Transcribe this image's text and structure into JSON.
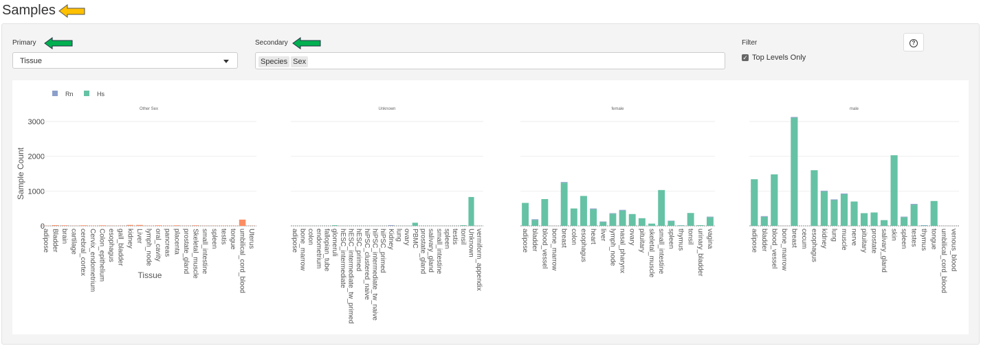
{
  "header": {
    "title": "Samples"
  },
  "controls": {
    "primary_label": "Primary",
    "primary_value": "Tissue",
    "secondary_label": "Secondary",
    "secondary_tags": [
      "Species",
      "Sex"
    ],
    "filter_label": "Filter",
    "filter_option": "Top Levels Only",
    "filter_checked": true,
    "help_icon": "question-circle-icon"
  },
  "annotations": {
    "yellow_arrow_color": "#ffc000",
    "green_arrow_color": "#00b050"
  },
  "chart_data": {
    "type": "bar",
    "stacked": true,
    "ylabel": "Sample Count",
    "xlabel": "Tissue",
    "ylim": [
      0,
      3200
    ],
    "yticks": [
      0,
      1000,
      2000,
      3000
    ],
    "grid": true,
    "legend_position": "top-left",
    "legend": [
      {
        "name": "Rn",
        "color": "#8c9fcb"
      },
      {
        "name": "Hs",
        "color": "#66c2a5"
      }
    ],
    "other_color": "#fc8d62",
    "panels": [
      {
        "title": "Other Sex",
        "categories": [
          "adipose",
          "Bladder",
          "brain",
          "cartilage",
          "cerebral_cortex",
          "Cervix_endometrium",
          "Colon_epithelium",
          "esophagus",
          "gall_bladder",
          "kidney",
          "Liver",
          "lymph_node",
          "oral_cavity",
          "pancreas",
          "placenta",
          "prostate_gland",
          "Skeletal_muscle",
          "small_intestine",
          "spleen",
          "testis",
          "tongue",
          "umbilical_cord_blood",
          "Uterus"
        ],
        "series": [
          {
            "color": "#fc8d62",
            "values": [
              5,
              20,
              15,
              5,
              15,
              5,
              15,
              5,
              5,
              25,
              25,
              5,
              15,
              5,
              15,
              5,
              15,
              5,
              5,
              5,
              5,
              180,
              5
            ]
          }
        ]
      },
      {
        "title": "Unknown",
        "categories": [
          "adipose",
          "bone_marrow",
          "colon",
          "endometrium",
          "fallopian_tube",
          "glomeruli",
          "hESC_intermediate",
          "hESC_intermediate_tw_primed",
          "hESC_primed",
          "hiPSC_clustered_naive",
          "hiPSC_intermediate_tw_naive",
          "hiPSC_primed",
          "Kidney",
          "lung",
          "ovary",
          "PBMC",
          "prostate_gland",
          "salivary_gland",
          "small_intestine",
          "spleen",
          "testis",
          "tonsil",
          "Unknown",
          "vermiform_appendix"
        ],
        "series": [
          {
            "name": "Hs",
            "color": "#66c2a5",
            "values": [
              2,
              2,
              2,
              2,
              2,
              20,
              2,
              2,
              2,
              2,
              2,
              2,
              0,
              2,
              2,
              90,
              2,
              2,
              2,
              2,
              2,
              20,
              830,
              2
            ]
          },
          {
            "name": "Rn",
            "color": "#8c9fcb",
            "values": [
              0,
              0,
              0,
              0,
              0,
              0,
              0,
              0,
              0,
              0,
              0,
              0,
              20,
              0,
              0,
              0,
              0,
              0,
              0,
              0,
              0,
              0,
              0,
              0
            ]
          }
        ]
      },
      {
        "title": "female",
        "categories": [
          "adipose",
          "bladder",
          "blood_vessel",
          "bone_marrow",
          "breast",
          "colon",
          "esophagus",
          "heart",
          "liver",
          "lymph_node",
          "nasal_pharynx",
          "ovary",
          "pituitary",
          "skeletal_muscle",
          "small_intestine",
          "spleen",
          "thymus",
          "tonsil",
          "urinary_bladder",
          "vagina"
        ],
        "series": [
          {
            "name": "Hs",
            "color": "#66c2a5",
            "values": [
              660,
              170,
              770,
              0,
              1240,
              500,
              860,
              480,
              110,
              350,
              440,
              340,
              220,
              65,
              1030,
              140,
              15,
              370,
              20,
              250
            ]
          },
          {
            "name": "Rn",
            "color": "#8c9fcb",
            "values": [
              0,
              20,
              0,
              0,
              20,
              0,
              0,
              20,
              15,
              15,
              20,
              0,
              0,
              0,
              0,
              10,
              5,
              0,
              0,
              15
            ]
          }
        ]
      },
      {
        "title": "male",
        "categories": [
          "adipose",
          "bladder",
          "blood_vessel",
          "bone_marrow",
          "breast",
          "cecum",
          "esophagus",
          "kidney",
          "lung",
          "muscle",
          "nerve",
          "pituitary",
          "prostate",
          "salivary_gland",
          "skin",
          "spleen",
          "testes",
          "thymus",
          "tongue",
          "umbilical_cord_blood",
          "venous_blood"
        ],
        "series": [
          {
            "name": "Hs",
            "color": "#66c2a5",
            "values": [
              1340,
              260,
              1480,
              0,
              3110,
              0,
              1600,
              990,
              740,
              910,
              700,
              365,
              385,
              165,
              2030,
              250,
              610,
              10,
              715,
              0,
              0
            ]
          },
          {
            "name": "Rn",
            "color": "#8c9fcb",
            "values": [
              0,
              20,
              0,
              0,
              20,
              0,
              0,
              20,
              20,
              20,
              0,
              0,
              0,
              0,
              0,
              15,
              20,
              10,
              0,
              0,
              0
            ]
          }
        ]
      }
    ]
  }
}
